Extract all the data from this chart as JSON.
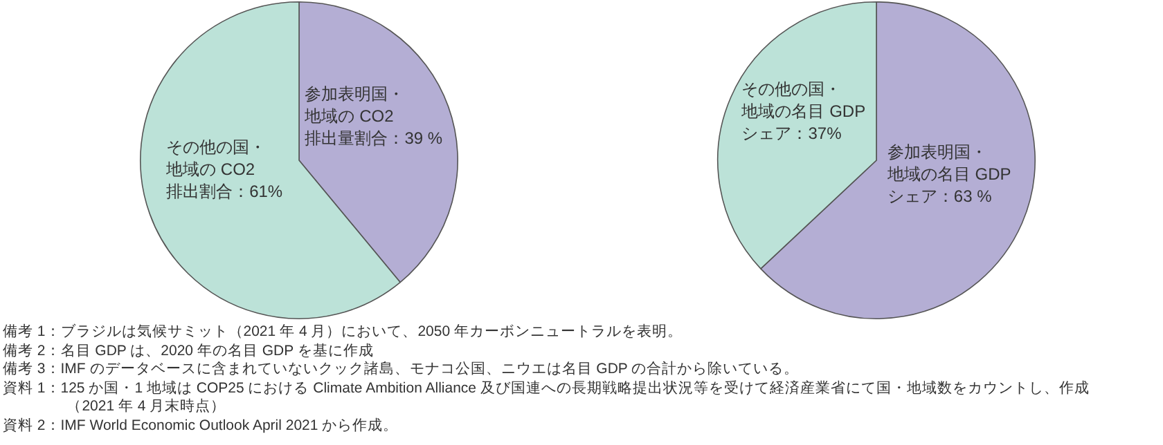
{
  "chart_data": [
    {
      "type": "pie",
      "categories": [
        "参加表明国・地域の CO2排出量割合：39 %",
        "その他の国・地域の CO2排出割合：61%"
      ],
      "values": [
        39,
        61
      ],
      "colors": [
        "#b4aed4",
        "#bce2d8"
      ],
      "annotations": [
        "備考 1：ブラジルは気候サミット（2021 年 4 月）において、2050 年カーボンニュートラルを表明。",
        "備考 2：名目 GDP は、2020 年の名目 GDP を基に作成",
        "備考 3：IMF のデータベースに含まれていないクック諸島、モナコ公国、ニウエは名目 GDP の合計から除いている。",
        "資料 1：125 か国・1 地域は COP25 における Climate Ambition Alliance 及び国連への長期戦略提出状況等を受けて経済産業省にて国・地域数をカウントし、作成（2021 年 4 月末時点）",
        "資料 2：IMF World Economic Outlook April 2021 から作成。"
      ]
    },
    {
      "type": "pie",
      "categories": [
        "参加表明国・地域の名目 GDPシェア：63 %",
        "その他の国・地域の名目 GDPシェア：37%"
      ],
      "values": [
        63,
        37
      ],
      "colors": [
        "#b4aed4",
        "#bce2d8"
      ]
    }
  ]
}
